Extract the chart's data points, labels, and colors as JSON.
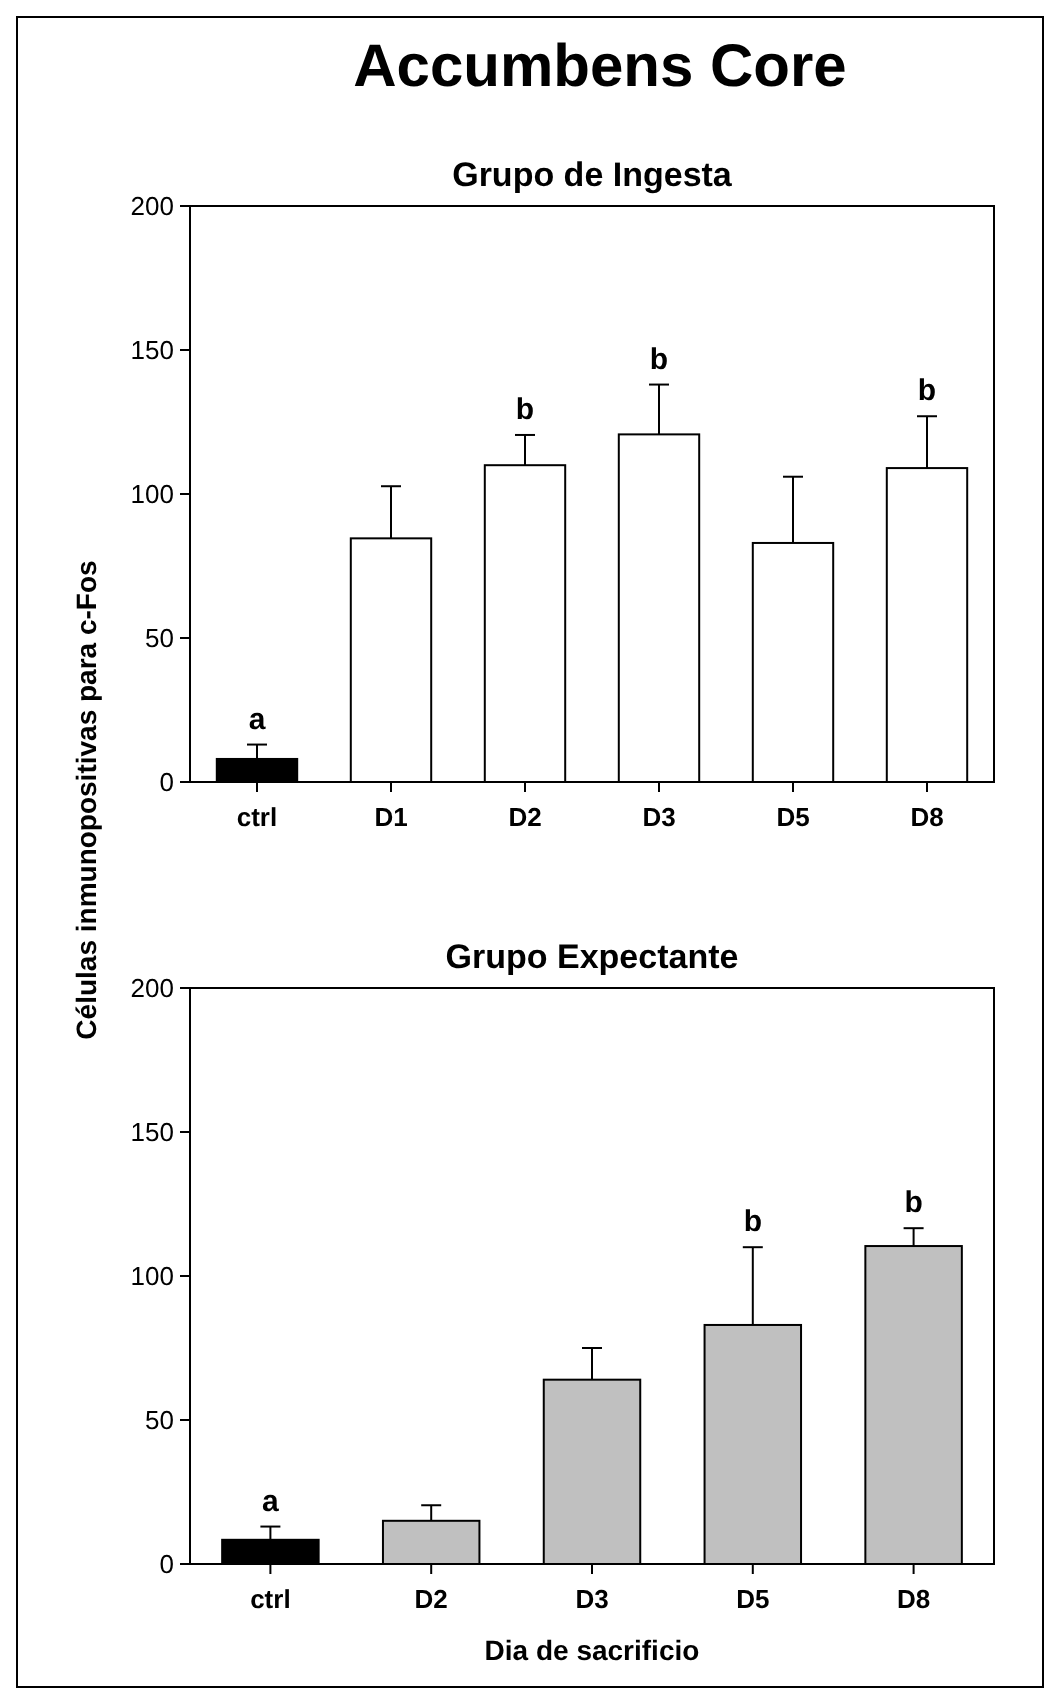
{
  "chart_data": [
    {
      "type": "bar",
      "title": "Accumbens Core",
      "subtitle": "Grupo de Ingesta",
      "ylabel": "Células inmunopositivas para c-Fos",
      "categories": [
        "ctrl",
        "D1",
        "D2",
        "D3",
        "D5",
        "D8"
      ],
      "values": [
        8,
        84.6,
        110,
        120.7,
        83,
        109
      ],
      "colors": [
        "#000000",
        "#ffffff",
        "#ffffff",
        "#ffffff",
        "#ffffff",
        "#ffffff"
      ],
      "errors": [
        [
          8,
          13
        ],
        [
          84.6,
          102.7
        ],
        [
          110,
          120.5
        ],
        [
          120.7,
          138
        ],
        [
          83,
          106
        ],
        [
          109,
          127
        ]
      ],
      "ylim": [
        0,
        200
      ],
      "yticks": [
        0,
        50,
        100,
        150,
        200
      ],
      "grid": false,
      "annotations": [
        {
          "text": "a",
          "x": "ctrl",
          "y": 13
        },
        {
          "text": "b",
          "x": "D2",
          "y": 120.5
        },
        {
          "text": "b",
          "x": "D3",
          "y": 138
        },
        {
          "text": "b",
          "x": "D8",
          "y": 127
        }
      ]
    },
    {
      "type": "bar",
      "title": "Grupo Expectante",
      "xlabel": "Dia de sacrificio",
      "categories": [
        "ctrl",
        "D2",
        "D3",
        "D5",
        "D8"
      ],
      "values": [
        8.4,
        15,
        64,
        83,
        110.4
      ],
      "colors": [
        "#000000",
        "#c0c0c0",
        "#c0c0c0",
        "#c0c0c0",
        "#c0c0c0"
      ],
      "errors": [
        [
          8.4,
          13
        ],
        [
          15,
          20.4
        ],
        [
          64,
          75
        ],
        [
          83,
          110
        ],
        [
          110.4,
          116.6
        ]
      ],
      "ylim": [
        0,
        200
      ],
      "yticks": [
        0,
        50,
        100,
        150,
        200
      ],
      "grid": false,
      "annotations": [
        {
          "text": "a",
          "x": "ctrl",
          "y": 13
        },
        {
          "text": "b",
          "x": "D5",
          "y": 110
        },
        {
          "text": "b",
          "x": "D8",
          "y": 116.6
        }
      ]
    }
  ]
}
